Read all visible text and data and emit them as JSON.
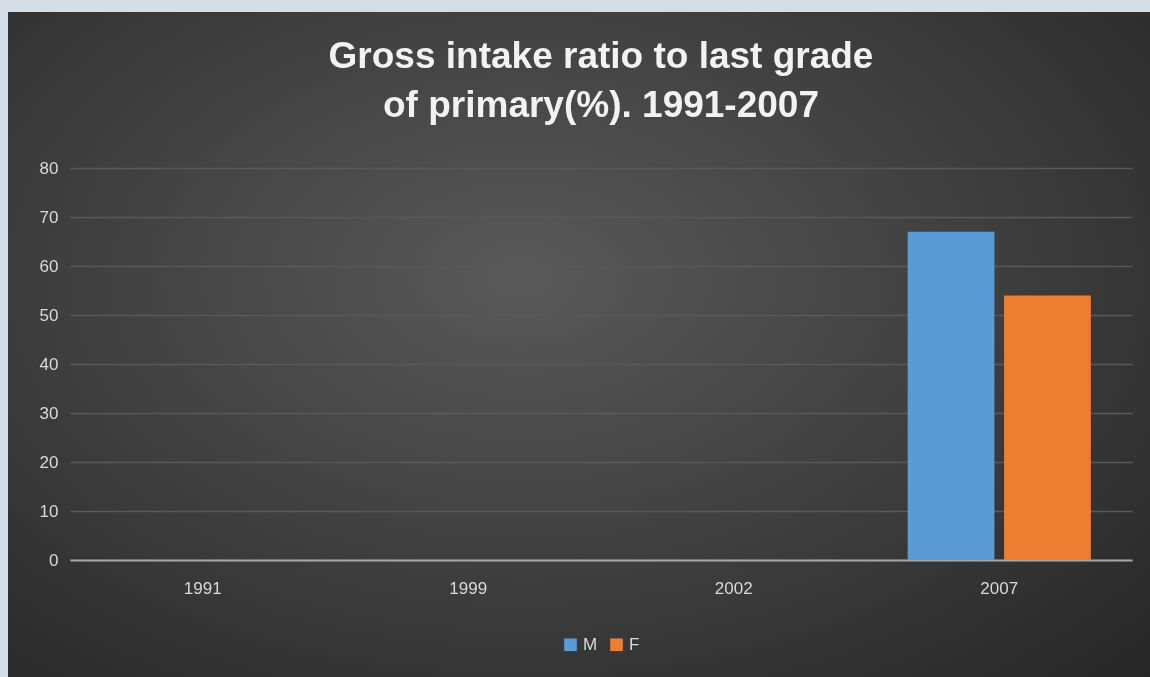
{
  "chart_data": {
    "type": "bar",
    "title": "Gross intake ratio to last grade of primary(%). 1991-2007",
    "categories": [
      "1991",
      "1999",
      "2002",
      "2007"
    ],
    "series": [
      {
        "name": "M",
        "color": "#5b9bd5",
        "values": [
          null,
          null,
          null,
          67
        ]
      },
      {
        "name": "F",
        "color": "#ed7d31",
        "values": [
          null,
          null,
          null,
          54
        ]
      }
    ],
    "ylim": [
      0,
      80
    ],
    "yticks": [
      0,
      10,
      20,
      30,
      40,
      50,
      60,
      70,
      80
    ],
    "grid": "y",
    "legend": "bottom"
  }
}
